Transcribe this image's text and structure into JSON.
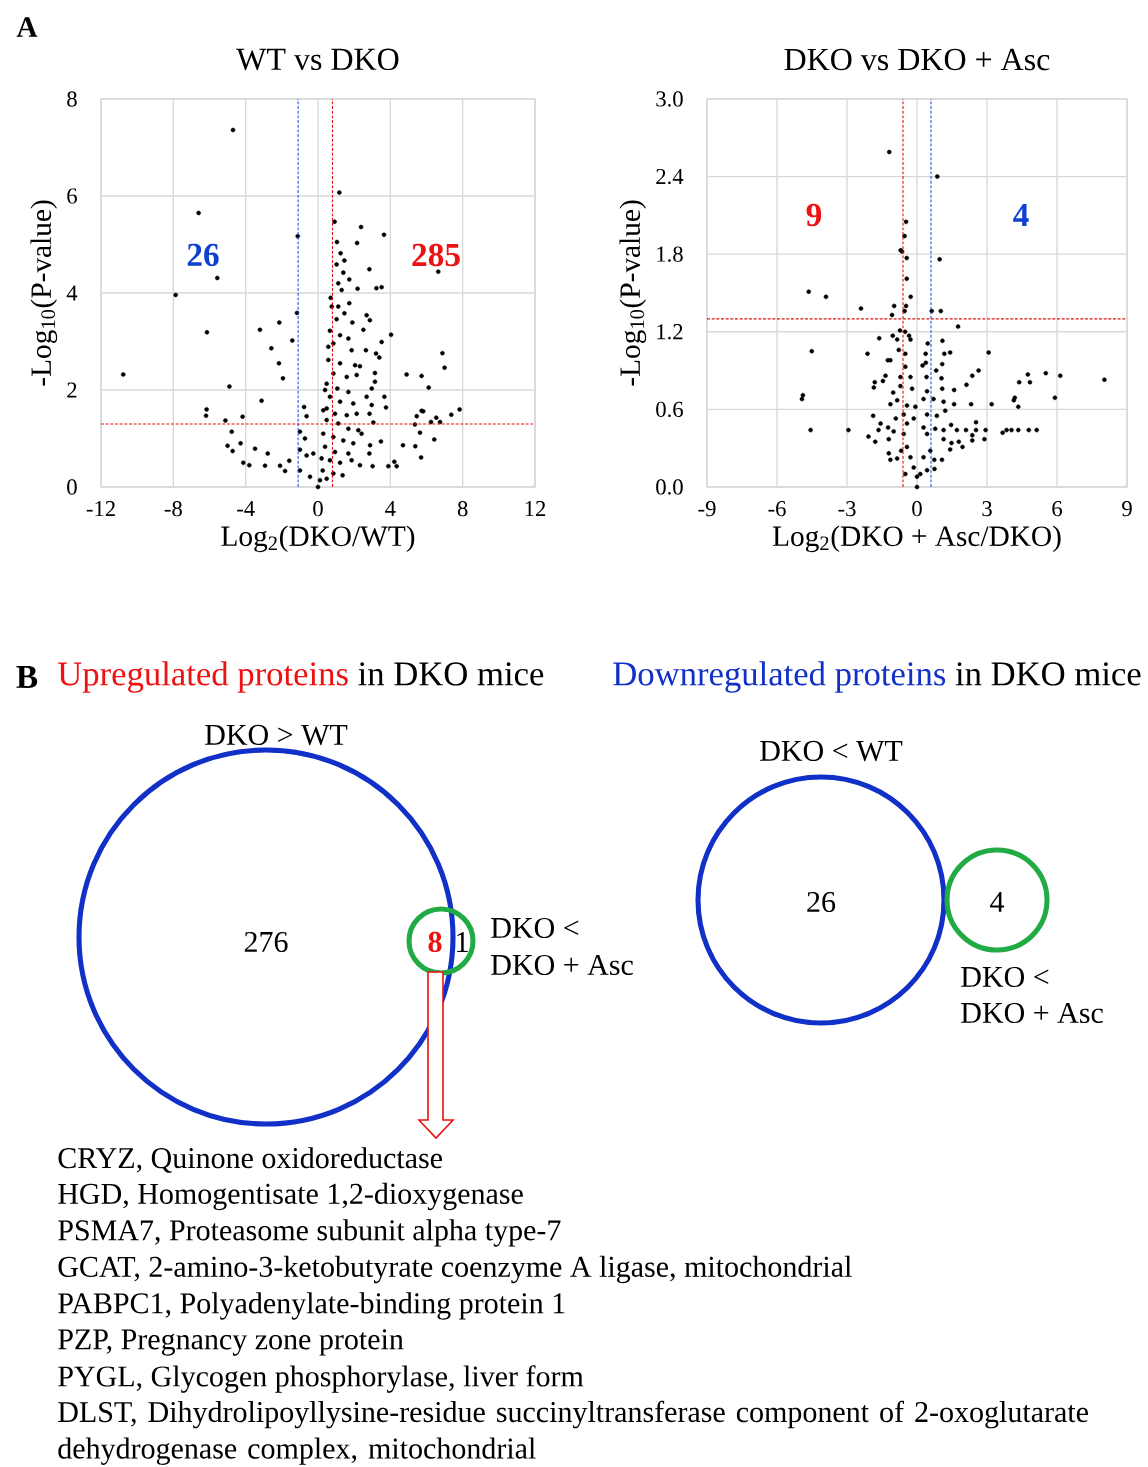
{
  "chart_data": [
    {
      "type": "scatter",
      "title": "WT vs DKO",
      "xlabel": "Log$_{2}$(DKO/WT)",
      "ylabel": "-Log$_{10}$(P-value)",
      "color": "#000000",
      "marker": "circle",
      "grid": true,
      "xlim": [
        -12,
        12
      ],
      "xticks": [
        -12,
        -8,
        -4,
        0,
        4,
        8,
        12
      ],
      "ylim": [
        0,
        8
      ],
      "yticks": [
        0,
        2,
        4,
        6,
        8
      ],
      "x": [
        -10.77,
        -4.7,
        -6.6,
        -1.12,
        -5.57,
        -7.87,
        -6.14,
        -1.16,
        -2.14,
        -3.21,
        -1.42,
        -2.58,
        -2.16,
        -1.94,
        -4.9,
        -3.12,
        -6.16,
        -6.19,
        -5.12,
        -4.17,
        -4.77,
        -5.0,
        -4.72,
        -4.28,
        -4.13,
        -3.8,
        -3.48,
        -2.78,
        -2.93,
        -2.1,
        -1.59,
        -1.82,
        -0.77,
        -0.63,
        -1.0,
        -0.72,
        -1.0,
        -0.63,
        -0.26,
        -1.0,
        -0.44,
        0,
        1.18,
        0.92,
        2.38,
        3.65,
        1.05,
        2.16,
        1.25,
        1.46,
        1.03,
        2.84,
        1.4,
        1.73,
        6.65,
        1.12,
        2.19,
        3.23,
        3.52,
        0.7,
        1.31,
        1.73,
        1.12,
        1.46,
        1.03,
        1.9,
        2.69,
        2.87,
        2.51,
        4.04,
        0.66,
        1.22,
        1.68,
        0.85,
        1.86,
        2.65,
        3.52,
        3.21,
        3.39,
        0.57,
        1.22,
        2.05,
        2.32,
        6.88,
        7.0,
        0.85,
        1.59,
        2.14,
        3.15,
        4.9,
        5.73,
        6.12,
        0.48,
        1.07,
        1.68,
        2.97,
        3.15,
        0.66,
        1.22,
        1.95,
        2.69,
        2.97,
        3.67,
        3.76,
        0.48,
        0.94,
        1.59,
        2.14,
        2.85,
        5.73,
        5.82,
        7.83,
        7.37,
        5.46,
        6.54,
        6.25,
        6.75,
        5.36,
        3.06,
        0.48,
        1.12,
        1.68,
        2.23,
        2.41,
        0.29,
        0.85,
        1.4,
        1.95,
        2.88,
        3.48,
        5.64,
        6.43,
        4.7,
        5.38,
        5.7,
        0.39,
        0.94,
        1.68,
        2.84,
        0.66,
        1.22,
        1.86,
        2.32,
        3.02,
        3.89,
        4.22,
        4.35,
        0.26,
        0.85,
        1.36,
        0.11,
        0.48,
        0.2,
        0.29,
        0.39,
        0.57,
        0.76
      ],
      "values": [
        2.32,
        7.36,
        5.65,
        5.17,
        4.31,
        3.96,
        3.19,
        3.59,
        3.39,
        3.24,
        3.02,
        2.86,
        2.55,
        2.24,
        2.07,
        1.78,
        1.6,
        1.47,
        1.37,
        1.45,
        1.14,
        0.85,
        0.74,
        0.9,
        0.5,
        0.45,
        0.79,
        0.69,
        0.44,
        0.44,
        0.54,
        0.33,
        1.65,
        1.46,
        1.14,
        1.0,
        0.77,
        0.65,
        0.69,
        0.34,
        0.21,
        0,
        6.07,
        5.47,
        5.36,
        5.2,
        5.05,
        5.03,
        4.82,
        4.67,
        4.59,
        4.49,
        4.42,
        4.28,
        4.44,
        4.2,
        4.09,
        4.1,
        4.12,
        3.9,
        4.06,
        3.79,
        3.72,
        3.58,
        3.46,
        3.39,
        3.54,
        3.44,
        3.24,
        3.14,
        3.22,
        3.13,
        3.06,
        2.96,
        2.82,
        2.82,
        2.99,
        2.75,
        2.67,
        2.62,
        2.55,
        2.51,
        2.49,
        2.76,
        2.46,
        2.34,
        2.27,
        2.31,
        2.35,
        2.32,
        2.29,
        2.05,
        2.13,
        2.03,
        1.96,
        2.03,
        2.17,
        1.86,
        1.76,
        1.72,
        1.86,
        1.69,
        1.86,
        1.64,
        1.62,
        1.51,
        1.48,
        1.51,
        1.51,
        1.57,
        1.56,
        1.6,
        1.49,
        1.46,
        1.43,
        1.34,
        1.34,
        1.29,
        1.33,
        1.38,
        1.31,
        1.2,
        1.17,
        1.1,
        1.1,
        1.03,
        0.96,
        0.9,
        0.86,
        0.94,
        1.12,
        0.98,
        0.86,
        0.84,
        0.61,
        0.83,
        0.72,
        0.69,
        0.69,
        0.55,
        0.5,
        0.55,
        0.45,
        0.43,
        0.43,
        0.52,
        0.43,
        0.34,
        0.28,
        0.24,
        0.14,
        0.17,
        0.59,
        1.58,
        2.0,
        2.89,
        3.72
      ],
      "ref_lines": [
        {
          "axis": "x",
          "value": -1.1,
          "color": "#1f4fe0",
          "line_style": "dashed"
        },
        {
          "axis": "x",
          "value": 0.8,
          "color": "#e01010",
          "line_style": "dashed"
        },
        {
          "axis": "y",
          "value": 1.3,
          "color": "#e01010",
          "line_style": "dashed"
        }
      ],
      "annotations": [
        "A",
        "26",
        "285"
      ]
    },
    {
      "type": "scatter",
      "title": "DKO vs DKO + Asc",
      "xlabel": "Log$_{2}$(DKO + Asc/DKO)",
      "ylabel": "-Log$_{10}$(P-value)",
      "color": "#000000",
      "marker": "circle",
      "grid": true,
      "xlim": [
        -9,
        9
      ],
      "xticks": [
        -9,
        -6,
        -3,
        0,
        3,
        6,
        9
      ],
      "ylim": [
        0,
        3
      ],
      "yticks": [
        {
          "value": 0,
          "label": "0.0"
        },
        0.6,
        1.2,
        1.8,
        2.4,
        {
          "value": 3,
          "label": "3.0"
        }
      ],
      "x": [
        -1.19,
        0.87,
        -0.47,
        -0.53,
        -0.7,
        -0.64,
        -0.44,
        0.97,
        -0.44,
        -4.64,
        -3.9,
        -0.27,
        -2.4,
        -0.98,
        -0.47,
        -1.07,
        -0.53,
        0.63,
        1.02,
        1.76,
        -0.73,
        -0.51,
        -0.34,
        -1.62,
        -1.04,
        -0.85,
        1.09,
        0.46,
        -4.51,
        -2.12,
        1.42,
        1.17,
        3.07,
        -0.78,
        -0.5,
        0.37,
        -1.25,
        -1.14,
        0.24,
        0.38,
        1.08,
        2.64,
        2.37,
        0.82,
        -1.35,
        -1.46,
        -1.81,
        -0.71,
        -0.28,
        0.41,
        1.05,
        4.75,
        5.52,
        6.14,
        8.03,
        4.38,
        4.84,
        -1.85,
        2.12,
        1.59,
        1.08,
        -0.71,
        -0.21,
        0.43,
        -4.89,
        -4.93,
        -1.02,
        4.19,
        4.15,
        5.91,
        4.34,
        -1.14,
        -0.85,
        -0.43,
        -0.07,
        0.28,
        0.71,
        1.14,
        1.59,
        2.32,
        3.2,
        1.21,
        -1.88,
        -0.91,
        -0.57,
        -0.14,
        0.43,
        0.85,
        2.53,
        -1.56,
        -1.24,
        -4.56,
        -2.94,
        -1.65,
        2.1,
        2.53,
        2.94,
        3.67,
        3.84,
        4.05,
        4.34,
        4.79,
        5.13,
        1.46,
        1.71,
        1.14,
        0.78,
        -1.0,
        -0.57,
        0.43,
        -2.08,
        -1.79,
        -1.21,
        2.37,
        2.89,
        2.37,
        1.48,
        1.79,
        1.95,
        1.14,
        1.42,
        -1.21,
        -1.14,
        -0.85,
        -0.68,
        -0.43,
        -0.28,
        -0.14,
        0,
        0.14,
        0.28,
        0.57,
        0.74,
        1.07,
        0.75,
        -0.5,
        0,
        0.43,
        -0.43,
        0.28,
        -0.5,
        -0.28
      ],
      "values": [
        2.59,
        2.4,
        2.05,
        1.94,
        1.83,
        1.82,
        1.77,
        1.76,
        1.61,
        1.51,
        1.47,
        1.47,
        1.38,
        1.4,
        1.4,
        1.33,
        1.36,
        1.36,
        1.36,
        1.24,
        1.21,
        1.2,
        1.17,
        1.15,
        1.17,
        1.14,
        1.13,
        1.11,
        1.05,
        1.03,
        1.04,
        1.03,
        1.04,
        1.06,
        1.03,
        1.03,
        0.98,
        0.98,
        0.94,
        0.96,
        0.95,
        0.9,
        0.86,
        0.9,
        0.86,
        0.82,
        0.81,
        0.85,
        0.85,
        0.85,
        0.84,
        0.87,
        0.88,
        0.86,
        0.83,
        0.81,
        0.81,
        0.77,
        0.79,
        0.75,
        0.76,
        0.78,
        0.76,
        0.74,
        0.71,
        0.68,
        0.73,
        0.69,
        0.67,
        0.69,
        0.62,
        0.64,
        0.67,
        0.63,
        0.62,
        0.68,
        0.68,
        0.66,
        0.64,
        0.64,
        0.64,
        0.59,
        0.55,
        0.53,
        0.56,
        0.53,
        0.56,
        0.55,
        0.5,
        0.49,
        0.46,
        0.44,
        0.44,
        0.44,
        0.44,
        0.44,
        0.44,
        0.42,
        0.44,
        0.44,
        0.44,
        0.44,
        0.44,
        0.48,
        0.44,
        0.44,
        0.45,
        0.43,
        0.41,
        0.41,
        0.39,
        0.35,
        0.37,
        0.4,
        0.37,
        0.36,
        0.34,
        0.35,
        0.31,
        0.37,
        0.29,
        0.26,
        0.21,
        0.22,
        0.28,
        0.31,
        0.23,
        0.15,
        0,
        0.1,
        0.23,
        0.28,
        0.21,
        0.21,
        0.14,
        0.1,
        0.08,
        0.13,
        0.49,
        0.46,
        0.93,
        1.14
      ],
      "ref_lines": [
        {
          "axis": "x",
          "value": -0.6,
          "color": "#e01010",
          "line_style": "dashed"
        },
        {
          "axis": "x",
          "value": 0.6,
          "color": "#1f4fe0",
          "line_style": "dashed"
        },
        {
          "axis": "y",
          "value": 1.3,
          "color": "#e01010",
          "line_style": "dashed"
        }
      ],
      "annotations": [
        "9",
        "4"
      ]
    },
    {
      "type": "other",
      "annotations": [
        "B",
        "Upregulated proteins",
        "in DKO mice",
        "DKO > WT",
        "276",
        "8",
        "1",
        "DKO <",
        "DKO + Asc",
        "CRYZ, Quinone oxidoreductase",
        "HGD, Homogentisate 1,2-dioxygenase",
        "PSMA7, Proteasome subunit alpha type-7",
        "GCAT, 2-amino-3-ketobutyrate coenzyme A ligase, mitochondrial",
        "PABPC1, Polyadenylate-binding protein 1",
        "PZP, Pregnancy zone protein",
        "PYGL, Glycogen phosphorylase, liver form",
        "DLST, Dihydrolipoyllysine-residue succinyltransferase component of 2-oxoglutarate dehydrogenase complex, mitochondrial"
      ]
    },
    {
      "type": "other",
      "annotations": [
        "Downregulated proteins",
        "in DKO mice",
        "DKO < WT",
        "26",
        "4",
        "DKO <",
        "DKO + Asc"
      ]
    }
  ]
}
